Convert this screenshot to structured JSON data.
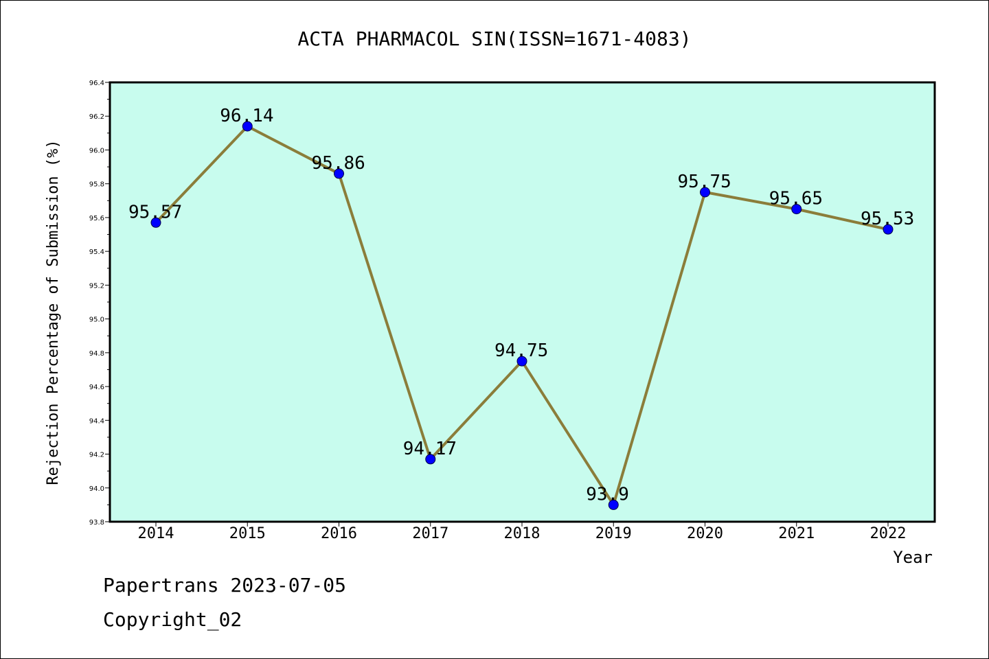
{
  "chart_data": {
    "type": "line",
    "title": "ACTA PHARMACOL SIN(ISSN=1671-4083)",
    "xlabel": "Year",
    "ylabel": "Rejection Percentage of Submission (%)",
    "categories": [
      "2014",
      "2015",
      "2016",
      "2017",
      "2018",
      "2019",
      "2020",
      "2021",
      "2022"
    ],
    "values": [
      95.57,
      96.14,
      95.86,
      94.17,
      94.75,
      93.9,
      95.75,
      95.65,
      95.53
    ],
    "data_labels": [
      "95.57",
      "96.14",
      "95.86",
      "94.17",
      "94.75",
      "93.9",
      "95.75",
      "95.65",
      "95.53"
    ],
    "ylim": [
      93.8,
      96.4
    ],
    "yticks": [
      "93.8",
      "94.0",
      "94.2",
      "94.4",
      "94.6",
      "94.8",
      "95.0",
      "95.2",
      "95.4",
      "95.6",
      "95.8",
      "96.0",
      "96.2",
      "96.4"
    ],
    "grid": false,
    "colors": {
      "plot_background": "#c8fcee",
      "line": "#8b7d3a",
      "marker": "#0000ff"
    }
  },
  "footer": {
    "line1": "Papertrans 2023-07-05",
    "line2": "Copyright_02"
  }
}
